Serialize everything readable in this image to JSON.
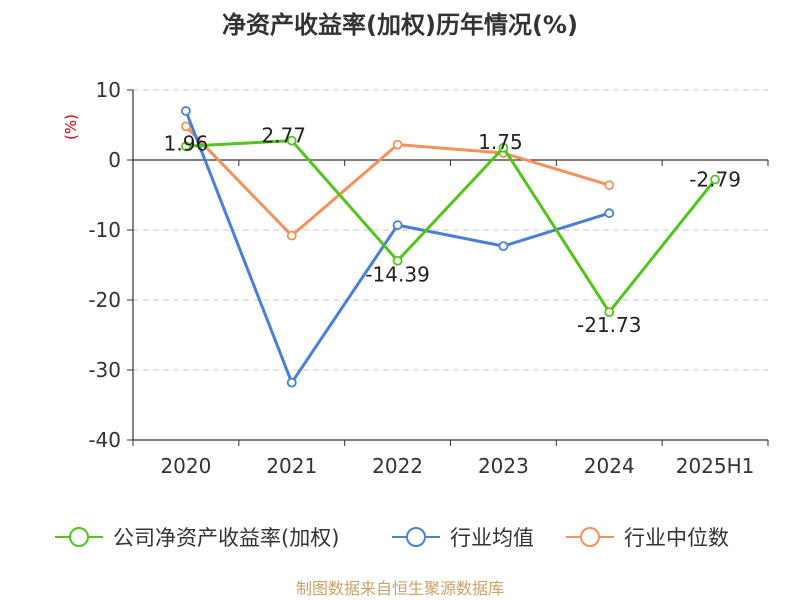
{
  "chart_data": {
    "type": "line",
    "title": "净资产收益率(加权)历年情况(%)",
    "ylabel": "(%)",
    "categories": [
      "2020",
      "2021",
      "2022",
      "2023",
      "2024",
      "2025H1"
    ],
    "ylim": [
      -40,
      10
    ],
    "yticks": [
      10,
      0,
      -10,
      -20,
      -30,
      -40
    ],
    "grid": true,
    "legend_position": "bottom",
    "series": [
      {
        "name": "公司净资产收益率(加权)",
        "color": "#52c41a",
        "values": [
          1.96,
          2.77,
          -14.39,
          1.75,
          -21.73,
          -2.79
        ],
        "labels": [
          "1.96",
          "2.77",
          "-14.39",
          "1.75",
          "-21.73",
          "-2.79"
        ]
      },
      {
        "name": "行业均值",
        "color": "#4a7fd9",
        "values": [
          7.0,
          -31.8,
          -9.3,
          -12.3,
          -7.6,
          null
        ]
      },
      {
        "name": "行业中位数",
        "color": "#f5915a",
        "values": [
          4.8,
          -10.8,
          2.2,
          1.0,
          -3.6,
          null
        ]
      }
    ]
  },
  "source": "制图数据来自恒生聚源数据库"
}
